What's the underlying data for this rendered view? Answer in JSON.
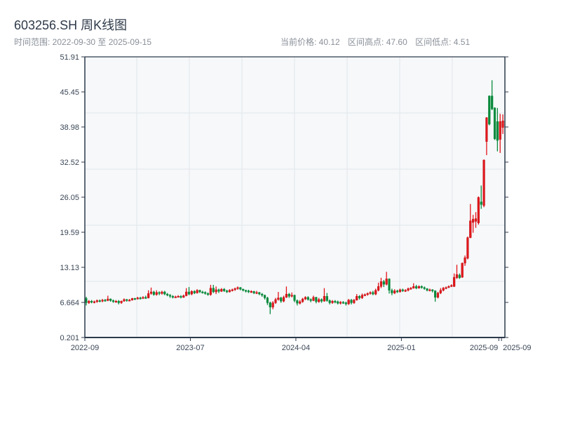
{
  "header": {
    "title": "603256.SH 周K线图",
    "range_label": "时间范围: 2022-09-30 至 2025-09-15",
    "current_price": "当前价格: 40.12",
    "period_high": "区间高点: 47.60",
    "period_low": "区间低点: 4.51"
  },
  "chart_data": {
    "type": "candlestick",
    "title": "603256.SH 周K线图",
    "xlabel": "",
    "ylabel": "",
    "ylim": [
      0.201,
      51.91
    ],
    "y_ticks": [
      "0.201",
      "6.664",
      "13.13",
      "19.59",
      "26.05",
      "32.52",
      "38.98",
      "45.45",
      "51.91"
    ],
    "x_ticks": [
      {
        "index": 0,
        "label": "2022-09"
      },
      {
        "index": 39,
        "label": "2023-07"
      },
      {
        "index": 78,
        "label": "2024-04"
      },
      {
        "index": 117,
        "label": "2025-01"
      },
      {
        "index": 153,
        "label": "2025-09"
      },
      {
        "index": 154,
        "label": "2025-09"
      }
    ],
    "grid": true,
    "colors": {
      "up": "#e3161b",
      "down": "#0b8a3c",
      "background": "#f6f8fa",
      "axis": "#2c3a4b",
      "grid": "#e3e6ea"
    },
    "open": [
      7.4,
      6.6,
      6.9,
      6.7,
      6.8,
      7.0,
      6.9,
      7.1,
      7.0,
      7.3,
      7.0,
      6.8,
      6.9,
      6.6,
      6.9,
      7.2,
      7.0,
      7.1,
      7.4,
      7.3,
      7.5,
      7.4,
      7.6,
      7.5,
      8.3,
      8.6,
      8.1,
      8.5,
      8.3,
      8.6,
      8.2,
      8.0,
      7.8,
      7.6,
      7.7,
      7.8,
      7.6,
      7.9,
      8.6,
      8.2,
      8.7,
      8.4,
      8.9,
      8.6,
      8.5,
      8.3,
      8.1,
      9.3,
      8.6,
      9.0,
      8.7,
      9.1,
      8.8,
      8.6,
      8.9,
      9.0,
      9.2,
      9.4,
      9.1,
      8.9,
      8.8,
      8.6,
      8.7,
      8.4,
      8.5,
      8.2,
      8.0,
      7.5,
      6.6,
      5.8,
      6.6,
      7.2,
      7.5,
      6.9,
      7.6,
      8.2,
      7.8,
      8.0,
      7.0,
      6.5,
      6.8,
      7.3,
      7.6,
      7.2,
      7.0,
      7.6,
      6.8,
      7.2,
      6.9,
      7.8,
      7.0,
      6.6,
      6.9,
      6.8,
      6.5,
      6.7,
      6.6,
      6.4,
      7.1,
      6.6,
      7.1,
      7.8,
      7.5,
      8.0,
      8.1,
      8.3,
      8.5,
      8.2,
      8.9,
      9.6,
      10.5,
      10.0,
      11.0,
      8.9,
      8.4,
      8.8,
      8.6,
      9.0,
      8.8,
      8.9,
      9.2,
      9.3,
      9.6,
      9.3,
      9.6,
      9.4,
      9.2,
      8.9,
      9.0,
      8.8,
      7.6,
      8.4,
      8.9,
      9.3,
      9.4,
      9.6,
      9.6,
      11.2,
      11.7,
      11.3,
      13.9,
      14.8,
      18.6,
      21.4,
      21.6,
      21.3,
      25.2,
      24.5,
      36.3,
      44.7,
      44.7,
      42.5,
      40.0,
      36.7,
      38.9
    ],
    "high": [
      7.7,
      7.1,
      7.1,
      7.0,
      7.2,
      7.2,
      7.3,
      7.3,
      7.9,
      7.4,
      7.2,
      7.1,
      7.1,
      7.0,
      7.4,
      7.3,
      7.3,
      7.5,
      7.5,
      7.7,
      7.7,
      7.8,
      7.9,
      8.9,
      9.4,
      8.8,
      8.9,
      8.7,
      8.8,
      8.8,
      8.4,
      8.2,
      8.0,
      7.9,
      8.0,
      8.0,
      8.1,
      9.3,
      9.5,
      8.9,
      8.9,
      9.1,
      9.0,
      8.8,
      8.7,
      8.5,
      9.9,
      9.9,
      9.6,
      9.2,
      9.3,
      9.3,
      9.0,
      9.1,
      9.2,
      9.4,
      9.6,
      9.5,
      9.2,
      9.0,
      9.0,
      8.9,
      8.8,
      8.8,
      8.6,
      8.4,
      8.1,
      7.7,
      6.8,
      6.9,
      7.5,
      8.6,
      7.7,
      7.9,
      9.6,
      8.4,
      8.5,
      8.1,
      7.2,
      7.1,
      7.5,
      7.8,
      7.8,
      7.4,
      7.9,
      7.7,
      7.5,
      7.4,
      9.3,
      8.4,
      7.2,
      7.1,
      7.1,
      7.0,
      6.9,
      6.9,
      6.8,
      7.3,
      7.3,
      7.3,
      8.2,
      8.0,
      8.3,
      8.3,
      8.5,
      8.7,
      8.8,
      9.2,
      10.3,
      11.2,
      10.8,
      12.3,
      11.1,
      9.2,
      9.1,
      9.0,
      9.2,
      9.2,
      9.1,
      9.4,
      9.5,
      10.2,
      9.9,
      9.8,
      9.8,
      9.6,
      9.3,
      9.2,
      9.1,
      8.9,
      8.6,
      9.3,
      9.5,
      9.6,
      9.8,
      10.0,
      12.0,
      13.6,
      12.0,
      14.0,
      15.3,
      18.8,
      24.8,
      22.8,
      23.3,
      26.2,
      28.2,
      33.0,
      40.8,
      44.8,
      47.6,
      42.6,
      42.5,
      41.4,
      41.3
    ],
    "low": [
      6.1,
      6.4,
      6.5,
      6.5,
      6.6,
      6.7,
      6.7,
      6.8,
      6.9,
      6.8,
      6.6,
      6.6,
      6.3,
      6.4,
      6.8,
      6.8,
      6.9,
      7.0,
      7.1,
      7.2,
      7.2,
      7.3,
      7.3,
      7.4,
      8.1,
      7.9,
      7.9,
      8.0,
      8.1,
      8.0,
      7.8,
      7.5,
      7.4,
      7.5,
      7.6,
      7.4,
      7.5,
      7.8,
      8.0,
      8.0,
      8.2,
      8.3,
      8.4,
      8.3,
      8.1,
      7.9,
      7.9,
      8.4,
      8.2,
      8.4,
      8.6,
      8.6,
      8.4,
      8.5,
      8.7,
      8.8,
      9.0,
      8.9,
      8.7,
      8.5,
      8.4,
      8.4,
      8.2,
      8.2,
      8.0,
      7.7,
      7.2,
      6.2,
      4.51,
      5.4,
      6.4,
      7.0,
      6.6,
      6.7,
      7.5,
      7.5,
      7.6,
      6.7,
      6.1,
      6.3,
      6.6,
      7.1,
      7.0,
      6.7,
      6.9,
      6.5,
      6.6,
      6.6,
      6.8,
      6.8,
      6.3,
      6.4,
      6.5,
      6.3,
      6.3,
      6.4,
      6.1,
      6.2,
      6.3,
      6.4,
      7.0,
      7.2,
      7.3,
      7.8,
      7.9,
      8.1,
      8.0,
      8.0,
      8.7,
      9.3,
      9.5,
      9.8,
      8.3,
      8.0,
      8.2,
      8.4,
      8.5,
      8.6,
      8.6,
      8.7,
      9.0,
      9.2,
      9.1,
      9.2,
      9.2,
      9.0,
      8.7,
      8.7,
      8.5,
      6.8,
      7.4,
      8.2,
      8.7,
      9.1,
      9.3,
      9.5,
      9.5,
      11.0,
      11.0,
      11.2,
      13.4,
      14.6,
      18.5,
      19.5,
      20.4,
      21.0,
      23.9,
      24.2,
      33.8,
      39.3,
      42.1,
      36.6,
      34.5,
      34.2,
      37.7
    ],
    "close": [
      6.6,
      6.9,
      6.7,
      6.8,
      7.0,
      6.9,
      7.1,
      7.0,
      7.3,
      7.0,
      6.8,
      6.9,
      6.6,
      6.9,
      7.2,
      7.0,
      7.1,
      7.4,
      7.3,
      7.5,
      7.4,
      7.6,
      7.5,
      8.3,
      8.6,
      8.1,
      8.5,
      8.3,
      8.6,
      8.2,
      8.0,
      7.8,
      7.6,
      7.7,
      7.8,
      7.6,
      7.9,
      8.6,
      8.2,
      8.7,
      8.4,
      8.9,
      8.6,
      8.5,
      8.3,
      8.1,
      9.3,
      8.6,
      9.0,
      8.7,
      9.1,
      8.8,
      8.6,
      8.9,
      9.0,
      9.2,
      9.4,
      9.1,
      8.9,
      8.8,
      8.6,
      8.7,
      8.4,
      8.5,
      8.2,
      8.0,
      7.5,
      6.6,
      5.8,
      6.6,
      7.2,
      7.5,
      6.9,
      7.6,
      8.2,
      7.8,
      8.0,
      7.0,
      6.5,
      6.8,
      7.3,
      7.6,
      7.2,
      7.0,
      7.6,
      6.8,
      7.2,
      6.9,
      7.8,
      7.0,
      6.6,
      6.9,
      6.8,
      6.5,
      6.7,
      6.6,
      6.4,
      7.1,
      6.6,
      7.1,
      7.8,
      7.5,
      8.0,
      8.1,
      8.3,
      8.5,
      8.2,
      8.9,
      9.6,
      10.5,
      10.0,
      11.0,
      8.9,
      8.4,
      8.8,
      8.6,
      9.0,
      8.8,
      8.9,
      9.2,
      9.3,
      9.6,
      9.3,
      9.6,
      9.4,
      9.2,
      8.9,
      9.0,
      8.8,
      7.6,
      8.4,
      8.9,
      9.3,
      9.4,
      9.6,
      9.8,
      11.3,
      11.8,
      11.2,
      13.9,
      14.9,
      18.6,
      21.7,
      22.0,
      22.1,
      26.0,
      24.7,
      32.9,
      40.7,
      39.5,
      42.3,
      36.8,
      36.5,
      40.0,
      40.12
    ]
  }
}
